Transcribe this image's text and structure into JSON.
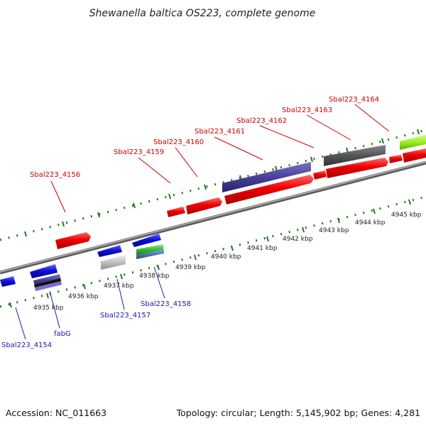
{
  "title": "Shewanella baltica OS223, complete genome",
  "footer": {
    "accession": "Accession: NC_011663",
    "summary": "Topology: circular; Length: 5,145,902 bp; Genes: 4,281"
  },
  "scale_labels": [
    "4935 kbp",
    "4936 kbp",
    "4937 kbp",
    "4938 kbp",
    "4939 kbp",
    "4940 kbp",
    "4941 kbp",
    "4942 kbp",
    "4943 kbp",
    "4944 kbp",
    "4945 kbp"
  ],
  "labels": {
    "forward": [
      "Sbal223_4156",
      "Sbal223_4159",
      "Sbal223_4160",
      "Sbal223_4161",
      "Sbal223_4162",
      "Sbal223_4163",
      "Sbal223_4164"
    ],
    "reverse": [
      "Sbal223_4154",
      "fabG",
      "Sbal223_4157",
      "Sbal223_4158"
    ]
  },
  "colors": {
    "forward_label": "#cc0000",
    "reverse_label": "#1a1aaa",
    "tick": "#1f7a1f",
    "backbone": "#8a8a8a",
    "forward_gene": "#ee0000",
    "reverse_gene": "#1010dd",
    "rna_lavender": "#4a3f99",
    "dark_gray": "#555555",
    "light_gray": "#c0c0c0",
    "lime": "#99ee22",
    "green": "#33bb33",
    "steel": "#5577aa"
  }
}
